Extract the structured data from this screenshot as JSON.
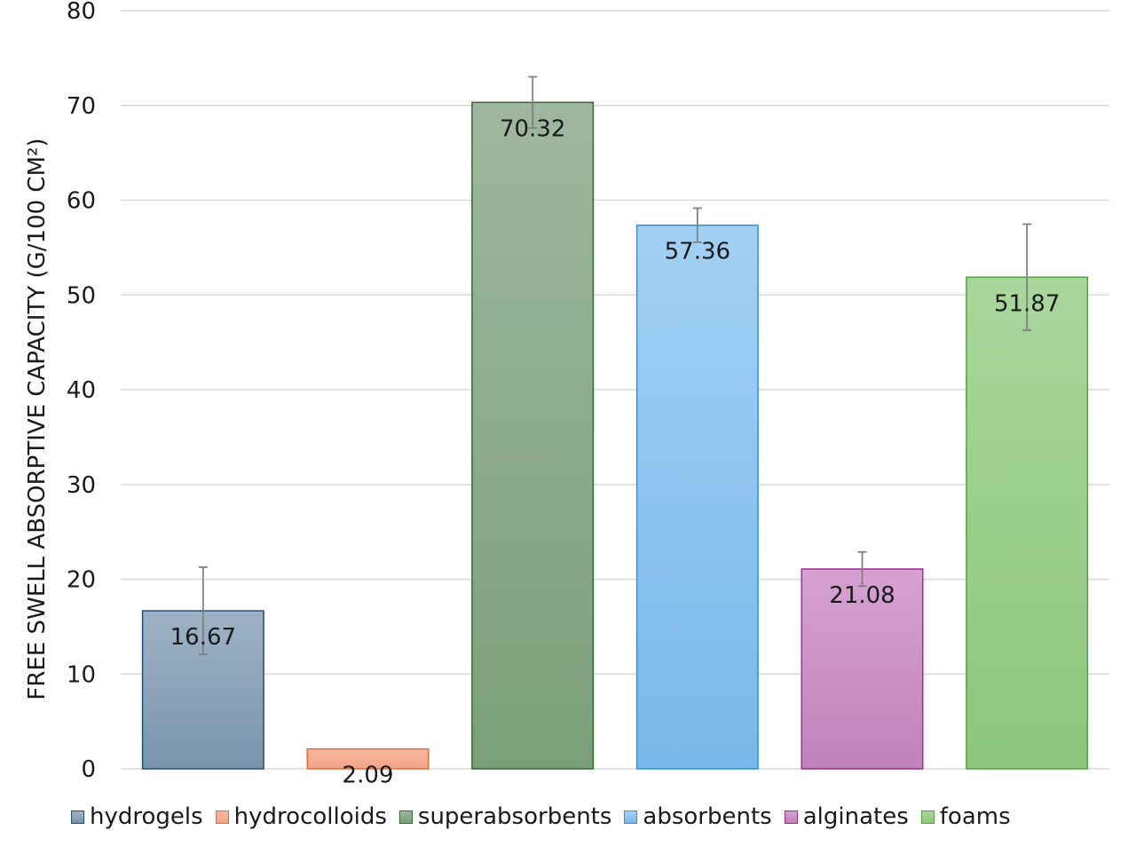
{
  "chart_data": {
    "type": "bar",
    "title": "",
    "xlabel": "",
    "ylabel": "FREE SWELL ABSORPTIVE CAPACITY (G/100 CM²)",
    "ylim": [
      0,
      80
    ],
    "yticks": [
      0,
      10,
      20,
      30,
      40,
      50,
      60,
      70,
      80
    ],
    "grid": true,
    "legend_position": "bottom",
    "categories": [
      "hydrogels",
      "hydrocolloids",
      "superabsorbents",
      "absorbents",
      "alginates",
      "foams"
    ],
    "values": [
      16.67,
      2.09,
      70.32,
      57.36,
      21.08,
      51.87
    ],
    "value_labels": [
      "16.67",
      "2.09",
      "70.32",
      "57.36",
      "21.08",
      "51.87"
    ],
    "error": [
      4.6,
      0,
      2.7,
      1.8,
      1.8,
      5.6
    ],
    "colors": [
      {
        "top": "#9fb2c4",
        "bottom": "#7894ad",
        "border": "#1f4e79"
      },
      {
        "top": "#f7b9a0",
        "bottom": "#f4a384",
        "border": "#e06e3a"
      },
      {
        "top": "#9fb79f",
        "bottom": "#7b9f7a",
        "border": "#2e6b2e"
      },
      {
        "top": "#a3d0f4",
        "bottom": "#78b8ea",
        "border": "#2b95d6"
      },
      {
        "top": "#d6a2d2",
        "bottom": "#c081bb",
        "border": "#9e2a96"
      },
      {
        "top": "#a9d69c",
        "bottom": "#8dc67c",
        "border": "#4ea33c"
      }
    ],
    "gridline_color": "#d9d9d9",
    "errorbar_color": "#808080"
  }
}
